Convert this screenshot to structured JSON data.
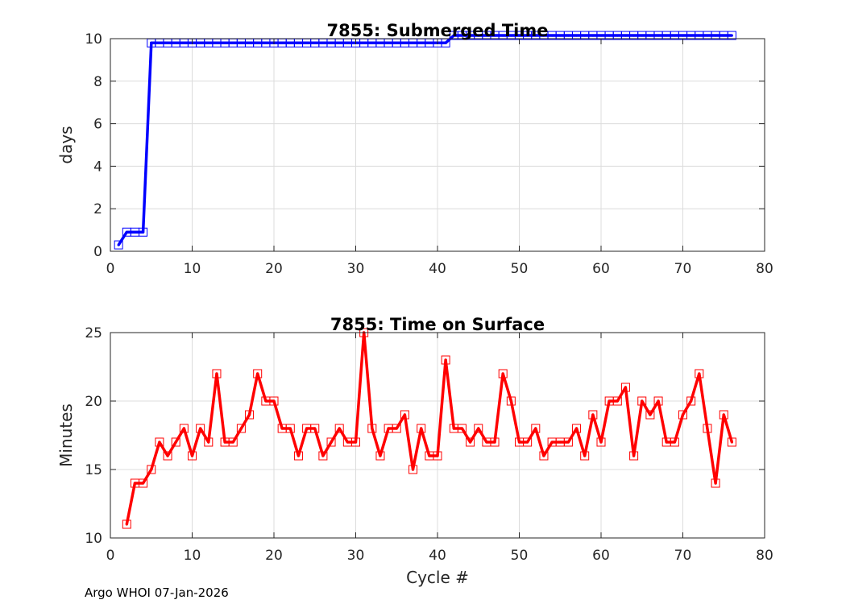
{
  "footer": "Argo WHOI 07-Jan-2026",
  "chart_data": [
    {
      "type": "line",
      "title": "7855: Submerged Time",
      "xlabel": "",
      "ylabel": "days",
      "xlim": [
        0,
        80
      ],
      "ylim": [
        0,
        10
      ],
      "xticks": [
        0,
        10,
        20,
        30,
        40,
        50,
        60,
        70,
        80
      ],
      "yticks": [
        0,
        2,
        4,
        6,
        8,
        10
      ],
      "grid": true,
      "line_color": "#0000ff",
      "marker": "square",
      "series": [
        {
          "x": [
            1,
            2,
            3,
            4,
            5,
            6,
            7,
            8,
            9,
            10,
            11,
            12,
            13,
            14,
            15,
            16,
            17,
            18,
            19,
            20,
            21,
            22,
            23,
            24,
            25,
            26,
            27,
            28,
            29,
            30,
            31,
            32,
            33,
            34,
            35,
            36,
            37,
            38,
            39,
            40,
            41,
            42,
            43,
            44,
            45,
            46,
            47,
            48,
            49,
            50,
            51,
            52,
            53,
            54,
            55,
            56,
            57,
            58,
            59,
            60,
            61,
            62,
            63,
            64,
            65,
            66,
            67,
            68,
            69,
            70,
            71,
            72,
            73,
            74,
            75,
            76
          ],
          "y": [
            0.3,
            0.9,
            0.9,
            0.9,
            9.8,
            9.8,
            9.8,
            9.8,
            9.8,
            9.8,
            9.8,
            9.8,
            9.8,
            9.8,
            9.8,
            9.8,
            9.8,
            9.8,
            9.8,
            9.8,
            9.8,
            9.8,
            9.8,
            9.8,
            9.8,
            9.8,
            9.8,
            9.8,
            9.8,
            9.8,
            9.8,
            9.8,
            9.8,
            9.8,
            9.8,
            9.8,
            9.8,
            9.8,
            9.8,
            9.8,
            9.8,
            10.15,
            10.15,
            10.15,
            10.15,
            10.15,
            10.15,
            10.15,
            10.15,
            10.15,
            10.15,
            10.15,
            10.15,
            10.15,
            10.15,
            10.15,
            10.15,
            10.15,
            10.15,
            10.15,
            10.15,
            10.15,
            10.15,
            10.15,
            10.15,
            10.15,
            10.15,
            10.15,
            10.15,
            10.15,
            10.15,
            10.15,
            10.15,
            10.15,
            10.15,
            10.15
          ]
        }
      ]
    },
    {
      "type": "line",
      "title": "7855: Time on Surface",
      "xlabel": "Cycle #",
      "ylabel": "Minutes",
      "xlim": [
        0,
        80
      ],
      "ylim": [
        10,
        25
      ],
      "xticks": [
        0,
        10,
        20,
        30,
        40,
        50,
        60,
        70,
        80
      ],
      "yticks": [
        10,
        15,
        20,
        25
      ],
      "grid": true,
      "line_color": "#ff0000",
      "marker": "square",
      "series": [
        {
          "x": [
            2,
            3,
            4,
            5,
            6,
            7,
            8,
            9,
            10,
            11,
            12,
            13,
            14,
            15,
            16,
            17,
            18,
            19,
            20,
            21,
            22,
            23,
            24,
            25,
            26,
            27,
            28,
            29,
            30,
            31,
            32,
            33,
            34,
            35,
            36,
            37,
            38,
            39,
            40,
            41,
            42,
            43,
            44,
            45,
            46,
            47,
            48,
            49,
            50,
            51,
            52,
            53,
            54,
            55,
            56,
            57,
            58,
            59,
            60,
            61,
            62,
            63,
            64,
            65,
            66,
            67,
            68,
            69,
            70,
            71,
            72,
            73,
            74,
            75,
            76
          ],
          "y": [
            11,
            14,
            14,
            15,
            17,
            16,
            17,
            18,
            16,
            18,
            17,
            22,
            17,
            17,
            18,
            19,
            22,
            20,
            20,
            18,
            18,
            16,
            18,
            18,
            16,
            17,
            18,
            17,
            17,
            25,
            18,
            16,
            18,
            18,
            19,
            15,
            18,
            16,
            16,
            23,
            18,
            18,
            17,
            18,
            17,
            17,
            22,
            20,
            17,
            17,
            18,
            16,
            17,
            17,
            17,
            18,
            16,
            19,
            17,
            20,
            20,
            21,
            16,
            20,
            19,
            20,
            17,
            17,
            19,
            20,
            22,
            18,
            14,
            19,
            17
          ]
        }
      ]
    }
  ]
}
